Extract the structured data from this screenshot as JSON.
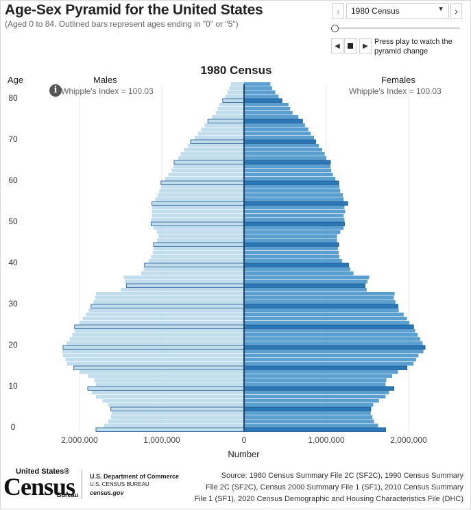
{
  "header": {
    "title": "Age-Sex Pyramid for the United States",
    "subtitle": "(Aged 0 to 84. Outlined bars represent ages ending in \"0\" or \"5\")"
  },
  "controls": {
    "prev_icon": "chevron-left-icon",
    "next_icon": "chevron-right-icon",
    "selected_census": "1980 Census",
    "play_note": "Press play to watch the pyramid change",
    "slider_position": 0
  },
  "chart": {
    "heading": "1980 Census",
    "age_label": "Age",
    "males_label": "Males",
    "females_label": "Females",
    "whipple_males": "Whipple's Index = 100.03",
    "whipple_females": "Whipple's Index = 100.03",
    "x_axis_label": "Number"
  },
  "colors": {
    "male_fill": "#c2ddec",
    "female_fill": "#5b9fd0",
    "outline_male": "#3a6ea0",
    "outline_female": "#1a5c96",
    "center_line": "#17446d",
    "grid": "#e8e8e8"
  },
  "chart_data": {
    "type": "bar",
    "orientation": "horizontal-pyramid",
    "title": "1980 Census",
    "xlabel": "Number",
    "ylabel": "Age",
    "xlim": [
      -2500000,
      2500000
    ],
    "x_tick_values": [
      -2000000,
      -1000000,
      0,
      1000000,
      2000000
    ],
    "x_tick_labels": [
      "2,000,000",
      "1,000,000",
      "0",
      "1,000,000",
      "2,000,000"
    ],
    "y_tick_values": [
      0,
      10,
      20,
      30,
      40,
      50,
      60,
      70,
      80
    ],
    "y_tick_labels": [
      "0",
      "10",
      "20",
      "30",
      "40",
      "50",
      "60",
      "70",
      "80"
    ],
    "outlined_ages": "ages ending in 0 or 5",
    "series": [
      {
        "name": "Males",
        "ages": [
          0,
          1,
          2,
          3,
          4,
          5,
          6,
          7,
          8,
          9,
          10,
          11,
          12,
          13,
          14,
          15,
          16,
          17,
          18,
          19,
          20,
          21,
          22,
          23,
          24,
          25,
          26,
          27,
          28,
          29,
          30,
          31,
          32,
          33,
          34,
          35,
          36,
          37,
          38,
          39,
          40,
          41,
          42,
          43,
          44,
          45,
          46,
          47,
          48,
          49,
          50,
          51,
          52,
          53,
          54,
          55,
          56,
          57,
          58,
          59,
          60,
          61,
          62,
          63,
          64,
          65,
          66,
          67,
          68,
          69,
          70,
          71,
          72,
          73,
          74,
          75,
          76,
          77,
          78,
          79,
          80,
          81,
          82,
          83,
          84
        ],
        "values": [
          1800000,
          1700000,
          1650000,
          1620000,
          1610000,
          1620000,
          1650000,
          1720000,
          1800000,
          1850000,
          1900000,
          1800000,
          1820000,
          1900000,
          2000000,
          2070000,
          2150000,
          2170000,
          2200000,
          2210000,
          2200000,
          2160000,
          2120000,
          2090000,
          2060000,
          2060000,
          2000000,
          1960000,
          1920000,
          1890000,
          1860000,
          1830000,
          1810000,
          1800000,
          1500000,
          1430000,
          1450000,
          1460000,
          1250000,
          1220000,
          1210000,
          1160000,
          1130000,
          1110000,
          1100000,
          1100000,
          1060000,
          1040000,
          1060000,
          1100000,
          1130000,
          1130000,
          1120000,
          1120000,
          1120000,
          1120000,
          1080000,
          1050000,
          1030000,
          1010000,
          1010000,
          960000,
          920000,
          880000,
          860000,
          850000,
          800000,
          770000,
          730000,
          680000,
          650000,
          600000,
          560000,
          520000,
          480000,
          440000,
          390000,
          340000,
          320000,
          300000,
          260000,
          230000,
          200000,
          180000,
          160000
        ]
      },
      {
        "name": "Females",
        "ages": [
          0,
          1,
          2,
          3,
          4,
          5,
          6,
          7,
          8,
          9,
          10,
          11,
          12,
          13,
          14,
          15,
          16,
          17,
          18,
          19,
          20,
          21,
          22,
          23,
          24,
          25,
          26,
          27,
          28,
          29,
          30,
          31,
          32,
          33,
          34,
          35,
          36,
          37,
          38,
          39,
          40,
          41,
          42,
          43,
          44,
          45,
          46,
          47,
          48,
          49,
          50,
          51,
          52,
          53,
          54,
          55,
          56,
          57,
          58,
          59,
          60,
          61,
          62,
          63,
          64,
          65,
          66,
          67,
          68,
          69,
          70,
          71,
          72,
          73,
          74,
          75,
          76,
          77,
          78,
          79,
          80,
          81,
          82,
          83,
          84
        ],
        "values": [
          1720000,
          1630000,
          1580000,
          1560000,
          1540000,
          1540000,
          1570000,
          1640000,
          1720000,
          1760000,
          1820000,
          1720000,
          1730000,
          1800000,
          1870000,
          1980000,
          2060000,
          2090000,
          2120000,
          2180000,
          2200000,
          2170000,
          2140000,
          2110000,
          2080000,
          2060000,
          2010000,
          1980000,
          1940000,
          1880000,
          1870000,
          1840000,
          1820000,
          1830000,
          1490000,
          1470000,
          1500000,
          1520000,
          1330000,
          1290000,
          1270000,
          1190000,
          1160000,
          1150000,
          1140000,
          1150000,
          1130000,
          1130000,
          1170000,
          1210000,
          1220000,
          1220000,
          1210000,
          1230000,
          1220000,
          1260000,
          1210000,
          1200000,
          1170000,
          1160000,
          1150000,
          1110000,
          1080000,
          1060000,
          1050000,
          1050000,
          1000000,
          980000,
          950000,
          910000,
          870000,
          850000,
          810000,
          780000,
          740000,
          710000,
          660000,
          590000,
          560000,
          540000,
          460000,
          420000,
          380000,
          340000,
          320000
        ]
      }
    ]
  },
  "footer": {
    "logo_us": "United States®",
    "logo_census": "Census",
    "logo_bureau": "Bureau",
    "doc_line1": "U.S. Department of Commerce",
    "doc_line2": "U.S. CENSUS BUREAU",
    "doc_line3": "census.gov",
    "source_line1": "Source: 1980 Census Summary File 2C (SF2C), 1990 Census Summary",
    "source_line2": "File 2C (SF2C), Census 2000 Summary File 1 (SF1), 2010 Census Summary",
    "source_line3": "File 1 (SF1), 2020 Census Demographic and Housing Characteristics File (DHC)"
  }
}
